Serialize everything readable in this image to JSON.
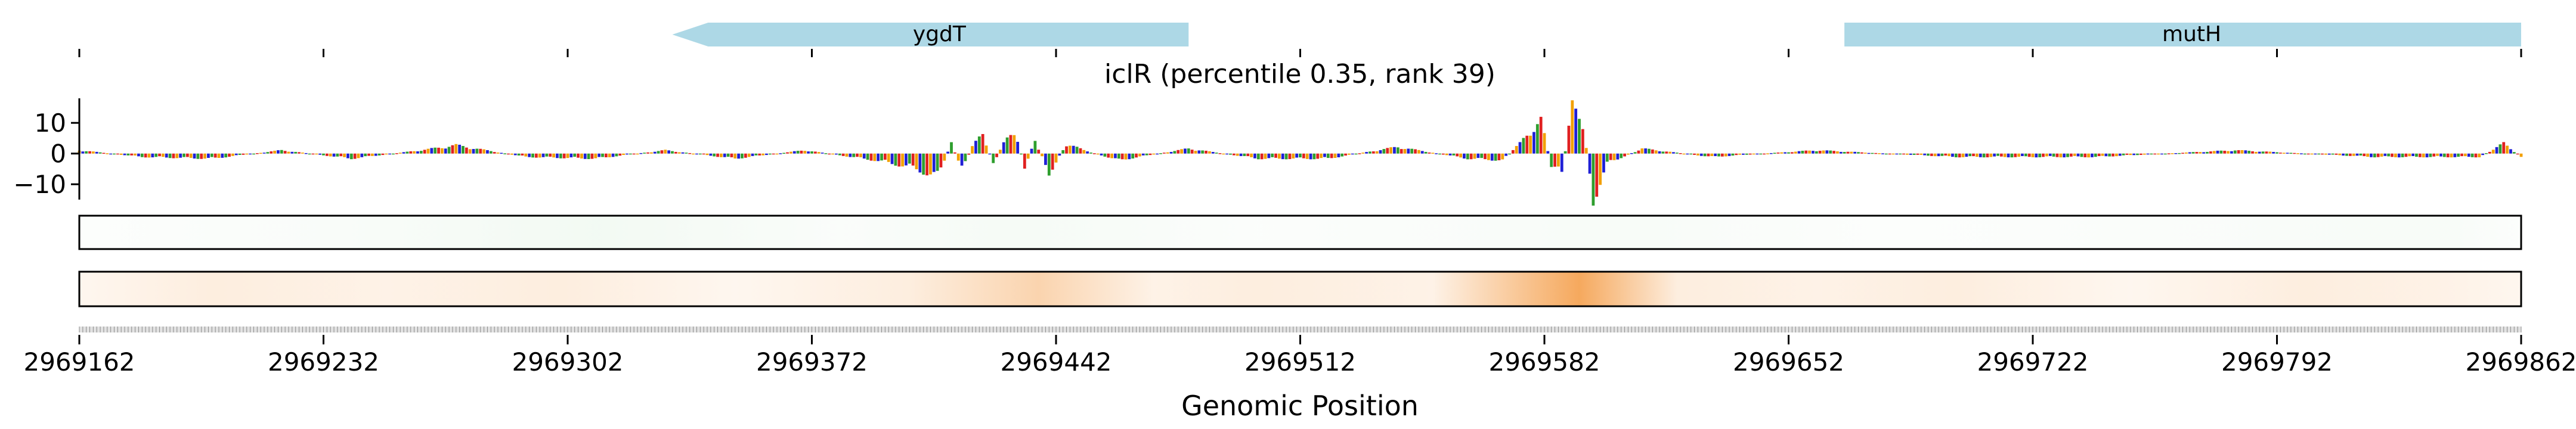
{
  "chart_data": {
    "type": "line",
    "title": "iclR (percentile 0.35, rank 39)",
    "xlabel": "Genomic Position",
    "ylabel": "",
    "xlim": [
      2969162,
      2969862
    ],
    "ylim": [
      -15,
      18
    ],
    "x_ticks": [
      2969162,
      2969232,
      2969302,
      2969372,
      2969442,
      2969512,
      2969582,
      2969652,
      2969722,
      2969792,
      2969862
    ],
    "x_tick_labels": [
      "2969162",
      "2969232",
      "2969302",
      "2969372",
      "2969442",
      "2969512",
      "2969582",
      "2969652",
      "2969722",
      "2969792",
      "2969862"
    ],
    "y_ticks": [
      10,
      0,
      -10
    ],
    "y_tick_labels": [
      "10",
      "0",
      "−10"
    ],
    "genes": [
      {
        "name": "ygdT",
        "start": 2969332,
        "end": 2969480,
        "strand": "-",
        "color": "#add8e6"
      },
      {
        "name": "mutH",
        "start": 2969668,
        "end": 2969862,
        "strand": "+",
        "color": "#add8e6"
      }
    ],
    "series": [
      {
        "name": "",
        "kind": "attribution-logo",
        "x": [
          2969162,
          2969180,
          2969200,
          2969220,
          2969240,
          2969260,
          2969270,
          2969290,
          2969310,
          2969330,
          2969350,
          2969370,
          2969390,
          2969400,
          2969408,
          2969412,
          2969415,
          2969418,
          2969421,
          2969424,
          2969427,
          2969430,
          2969433,
          2969436,
          2969440,
          2969445,
          2969450,
          2969460,
          2969480,
          2969500,
          2969520,
          2969540,
          2969560,
          2969570,
          2969575,
          2969578,
          2969581,
          2969584,
          2969587,
          2969590,
          2969593,
          2969596,
          2969600,
          2969610,
          2969630,
          2969660,
          2969700,
          2969740,
          2969780,
          2969820,
          2969850,
          2969857,
          2969862
        ],
        "y": [
          1,
          -1,
          -1.5,
          1,
          -1.5,
          1,
          2.5,
          -1,
          -1.5,
          1,
          -1.5,
          1,
          -2,
          -4,
          -7,
          3,
          -5,
          2,
          6,
          -3,
          3,
          8,
          -4,
          4,
          -6,
          3,
          1,
          -2,
          1.5,
          -1.5,
          -1.5,
          2,
          -1.5,
          -2,
          3,
          7,
          10,
          -4,
          -6,
          14,
          10,
          -14,
          -3,
          1.5,
          -1,
          1,
          -1,
          -1,
          1,
          -1,
          -1,
          3,
          -1
        ]
      },
      {
        "name": "",
        "kind": "green-heat-track",
        "x": [
          2969162,
          2969240,
          2969310,
          2969380,
          2969430,
          2969500,
          2969580,
          2969600,
          2969680,
          2969760,
          2969840,
          2969862
        ],
        "y": [
          0.05,
          0.1,
          0.2,
          0.08,
          0.15,
          0.06,
          0.1,
          0.12,
          0.05,
          0.08,
          0.12,
          0.05
        ]
      },
      {
        "name": "",
        "kind": "orange-heat-track",
        "x": [
          2969162,
          2969200,
          2969250,
          2969300,
          2969350,
          2969400,
          2969437,
          2969470,
          2969500,
          2969550,
          2969592,
          2969620,
          2969660,
          2969700,
          2969750,
          2969800,
          2969840,
          2969862
        ],
        "y": [
          0.1,
          0.2,
          0.15,
          0.2,
          0.1,
          0.2,
          0.5,
          0.15,
          0.2,
          0.15,
          1.0,
          0.2,
          0.15,
          0.2,
          0.1,
          0.2,
          0.15,
          0.1
        ]
      }
    ],
    "grid": false,
    "legend": "none"
  }
}
